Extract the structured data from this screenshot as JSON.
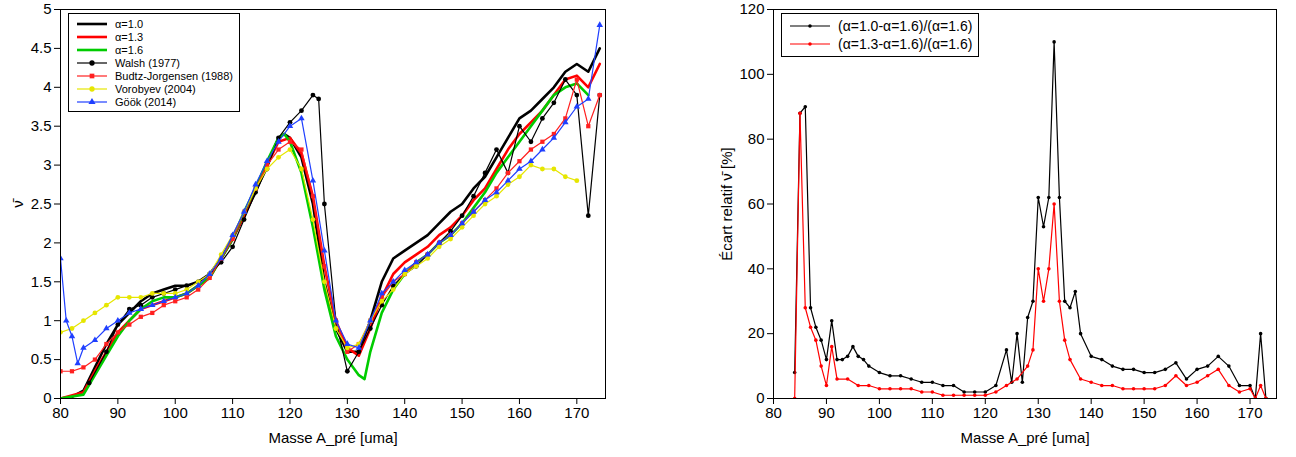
{
  "chart_data": [
    {
      "type": "line",
      "x_label": "Masse A_pré [uma]",
      "y_label": "ν̄",
      "xlim": [
        80,
        175
      ],
      "xticks": [
        80,
        90,
        100,
        110,
        120,
        130,
        140,
        150,
        160,
        170
      ],
      "ylim": [
        0,
        5
      ],
      "yticks": [
        0,
        0.5,
        1,
        1.5,
        2,
        2.5,
        3,
        3.5,
        4,
        4.5,
        5
      ],
      "grid": false,
      "legend": "upper left",
      "series": [
        {
          "name": "α=1.0",
          "color": "#000000",
          "marker": "none",
          "line_style": "solid",
          "x": [
            80,
            82,
            84,
            86,
            88,
            90,
            92,
            94,
            96,
            98,
            100,
            102,
            104,
            106,
            108,
            110,
            112,
            114,
            116,
            118,
            119,
            120,
            122,
            124,
            126,
            128,
            130,
            132,
            134,
            136,
            138,
            140,
            142,
            144,
            146,
            148,
            150,
            152,
            154,
            156,
            158,
            160,
            162,
            164,
            166,
            168,
            170,
            172,
            174
          ],
          "values": [
            0,
            0.02,
            0.1,
            0.4,
            0.7,
            0.95,
            1.1,
            1.25,
            1.35,
            1.4,
            1.45,
            1.45,
            1.5,
            1.6,
            1.8,
            2.05,
            2.35,
            2.65,
            3.0,
            3.35,
            3.4,
            3.35,
            3.1,
            2.5,
            1.5,
            0.9,
            0.6,
            0.6,
            1.0,
            1.5,
            1.8,
            1.9,
            2.0,
            2.1,
            2.25,
            2.4,
            2.5,
            2.7,
            2.85,
            3.1,
            3.35,
            3.6,
            3.7,
            3.85,
            4.0,
            4.2,
            4.3,
            4.2,
            4.5
          ]
        },
        {
          "name": "α=1.3",
          "color": "#ff0000",
          "marker": "none",
          "line_style": "solid",
          "x": [
            80,
            84,
            86,
            88,
            90,
            92,
            94,
            96,
            98,
            100,
            102,
            104,
            106,
            108,
            110,
            112,
            114,
            116,
            118,
            120,
            122,
            124,
            126,
            128,
            130,
            132,
            134,
            136,
            138,
            140,
            142,
            144,
            146,
            148,
            150,
            152,
            154,
            156,
            158,
            160,
            162,
            164,
            166,
            168,
            170,
            172,
            174
          ],
          "values": [
            0,
            0.08,
            0.35,
            0.6,
            0.85,
            1.0,
            1.15,
            1.2,
            1.25,
            1.3,
            1.35,
            1.45,
            1.55,
            1.8,
            2.05,
            2.35,
            2.7,
            3.0,
            3.3,
            3.35,
            3.15,
            2.6,
            1.7,
            1.0,
            0.65,
            0.55,
            0.9,
            1.3,
            1.6,
            1.75,
            1.85,
            1.95,
            2.1,
            2.2,
            2.35,
            2.55,
            2.7,
            2.95,
            3.2,
            3.4,
            3.55,
            3.7,
            3.9,
            4.1,
            4.15,
            4.0,
            4.3
          ]
        },
        {
          "name": "α=1.6",
          "color": "#00cc00",
          "marker": "none",
          "line_style": "solid",
          "x": [
            80,
            84,
            86,
            88,
            90,
            92,
            94,
            96,
            98,
            100,
            102,
            104,
            106,
            108,
            110,
            112,
            114,
            116,
            118,
            119,
            120,
            122,
            124,
            126,
            128,
            130,
            132,
            133,
            134,
            136,
            138,
            140,
            142,
            144,
            146,
            148,
            150,
            152,
            154,
            156,
            158,
            160,
            162,
            164,
            166,
            168,
            170,
            172
          ],
          "values": [
            0,
            0.05,
            0.3,
            0.55,
            0.8,
            1.0,
            1.15,
            1.25,
            1.3,
            1.3,
            1.35,
            1.45,
            1.55,
            1.8,
            2.05,
            2.4,
            2.7,
            3.05,
            3.35,
            3.4,
            3.3,
            2.9,
            2.2,
            1.4,
            0.8,
            0.5,
            0.3,
            0.25,
            0.6,
            1.1,
            1.4,
            1.6,
            1.75,
            1.85,
            2.0,
            2.1,
            2.25,
            2.45,
            2.65,
            2.9,
            3.1,
            3.3,
            3.5,
            3.7,
            3.9,
            4.0,
            4.05,
            3.9
          ]
        },
        {
          "name": "Walsh (1977)",
          "color": "#000000",
          "marker": "circle",
          "line_style": "solid",
          "x": [
            85,
            88,
            90,
            92,
            94,
            96,
            98,
            100,
            102,
            104,
            106,
            108,
            110,
            112,
            114,
            116,
            118,
            120,
            122,
            124,
            125,
            126,
            128,
            130,
            132,
            134,
            136,
            138,
            140,
            142,
            144,
            146,
            148,
            150,
            152,
            154,
            156,
            158,
            160,
            162,
            164,
            166,
            168,
            170,
            172,
            174
          ],
          "values": [
            0.2,
            0.6,
            0.95,
            1.15,
            1.2,
            1.3,
            1.35,
            1.4,
            1.45,
            1.5,
            1.6,
            1.75,
            1.95,
            2.3,
            2.65,
            2.95,
            3.35,
            3.55,
            3.7,
            3.9,
            3.85,
            2.5,
            1.0,
            0.35,
            0.6,
            0.9,
            1.2,
            1.45,
            1.6,
            1.7,
            1.85,
            2.0,
            2.15,
            2.35,
            2.6,
            2.9,
            3.2,
            2.9,
            3.5,
            3.3,
            3.6,
            3.8,
            4.1,
            3.9,
            2.35,
            3.9
          ]
        },
        {
          "name": "Budtz-Jorgensen (1988)",
          "color": "#ff2020",
          "marker": "square",
          "line_style": "solid",
          "x": [
            80,
            82,
            84,
            86,
            88,
            90,
            92,
            94,
            96,
            98,
            100,
            102,
            104,
            106,
            108,
            110,
            112,
            114,
            116,
            118,
            120,
            122,
            124,
            126,
            128,
            130,
            132,
            134,
            136,
            138,
            140,
            142,
            144,
            146,
            148,
            150,
            152,
            154,
            156,
            158,
            160,
            162,
            164,
            166,
            168,
            170,
            172,
            174
          ],
          "values": [
            0.35,
            0.35,
            0.4,
            0.5,
            0.7,
            0.85,
            0.95,
            1.05,
            1.1,
            1.2,
            1.25,
            1.3,
            1.4,
            1.55,
            1.8,
            2.05,
            2.4,
            2.7,
            3.0,
            3.2,
            3.3,
            3.2,
            2.6,
            1.7,
            1.0,
            0.6,
            0.7,
            1.0,
            1.3,
            1.5,
            1.6,
            1.75,
            1.85,
            2.0,
            2.1,
            2.25,
            2.4,
            2.55,
            2.7,
            2.9,
            3.05,
            3.2,
            3.3,
            3.4,
            3.6,
            4.1,
            3.5,
            3.9
          ]
        },
        {
          "name": "Vorobyev (2004)",
          "color": "#e6e600",
          "marker": "circle",
          "line_style": "solid",
          "x": [
            80,
            82,
            84,
            86,
            88,
            90,
            92,
            94,
            96,
            98,
            100,
            102,
            104,
            106,
            108,
            110,
            112,
            114,
            116,
            118,
            120,
            122,
            124,
            126,
            128,
            130,
            132,
            134,
            136,
            138,
            140,
            142,
            144,
            146,
            148,
            150,
            152,
            154,
            156,
            158,
            160,
            162,
            164,
            166,
            168,
            170
          ],
          "values": [
            0.85,
            0.9,
            1.0,
            1.1,
            1.2,
            1.3,
            1.3,
            1.3,
            1.35,
            1.35,
            1.35,
            1.4,
            1.5,
            1.6,
            1.85,
            2.1,
            2.4,
            2.7,
            2.95,
            3.1,
            3.2,
            2.95,
            2.3,
            1.5,
            0.9,
            0.65,
            0.7,
            1.0,
            1.25,
            1.4,
            1.6,
            1.7,
            1.8,
            1.95,
            2.05,
            2.2,
            2.35,
            2.5,
            2.6,
            2.75,
            2.85,
            3.0,
            2.95,
            2.95,
            2.85,
            2.8
          ]
        },
        {
          "name": "Göök (2014)",
          "color": "#1f3fff",
          "marker": "triangle",
          "line_style": "solid",
          "x": [
            80,
            81,
            82,
            83,
            84,
            86,
            88,
            90,
            92,
            94,
            96,
            98,
            100,
            102,
            104,
            106,
            108,
            110,
            112,
            114,
            116,
            118,
            120,
            122,
            124,
            126,
            128,
            130,
            132,
            134,
            136,
            138,
            140,
            142,
            144,
            146,
            148,
            150,
            152,
            154,
            156,
            158,
            160,
            162,
            164,
            166,
            168,
            170,
            172,
            174
          ],
          "values": [
            1.8,
            1.0,
            0.8,
            0.45,
            0.65,
            0.75,
            0.9,
            1.0,
            1.1,
            1.15,
            1.2,
            1.25,
            1.3,
            1.35,
            1.45,
            1.6,
            1.8,
            2.1,
            2.4,
            2.75,
            3.05,
            3.3,
            3.5,
            3.6,
            2.8,
            1.9,
            1.0,
            0.7,
            0.65,
            1.0,
            1.35,
            1.5,
            1.65,
            1.75,
            1.85,
            2.0,
            2.1,
            2.25,
            2.4,
            2.55,
            2.65,
            2.8,
            2.95,
            3.05,
            3.2,
            3.35,
            3.55,
            3.75,
            3.85,
            4.8
          ]
        }
      ]
    },
    {
      "type": "line",
      "x_label": "Masse A_pré [uma]",
      "y_label": "Écart relatif ν̄ [%]",
      "xlim": [
        80,
        175
      ],
      "xticks": [
        80,
        90,
        100,
        110,
        120,
        130,
        140,
        150,
        160,
        170
      ],
      "ylim": [
        0,
        120
      ],
      "yticks": [
        0,
        20,
        40,
        60,
        80,
        100,
        120
      ],
      "grid": false,
      "legend": "upper left",
      "series": [
        {
          "name": "(α=1.0-α=1.6)/(α=1.6)",
          "color": "#000000",
          "marker": "dot",
          "line_style": "solid",
          "x": [
            84,
            85,
            86,
            87,
            88,
            89,
            90,
            91,
            92,
            93,
            94,
            95,
            96,
            97,
            98,
            100,
            102,
            104,
            106,
            108,
            110,
            112,
            114,
            116,
            118,
            120,
            122,
            124,
            125,
            126,
            127,
            128,
            129,
            130,
            131,
            132,
            133,
            134,
            135,
            136,
            137,
            138,
            140,
            142,
            144,
            146,
            148,
            150,
            152,
            154,
            156,
            158,
            160,
            162,
            164,
            166,
            168,
            170,
            171,
            172,
            173
          ],
          "values": [
            8,
            88,
            90,
            28,
            22,
            18,
            12,
            24,
            12,
            12,
            13,
            16,
            13,
            12,
            10,
            8,
            7,
            7,
            6,
            5,
            5,
            4,
            4,
            2,
            2,
            2,
            4,
            15,
            5,
            20,
            5,
            25,
            30,
            62,
            53,
            62,
            110,
            62,
            30,
            28,
            33,
            20,
            13,
            12,
            10,
            9,
            9,
            8,
            8,
            9,
            11,
            6,
            9,
            10,
            13,
            10,
            4,
            4,
            0,
            20,
            0
          ]
        },
        {
          "name": "(α=1.3-α=1.6)/(α=1.6)",
          "color": "#ff0000",
          "marker": "dot",
          "line_style": "solid",
          "x": [
            84,
            85,
            86,
            87,
            88,
            89,
            90,
            91,
            92,
            94,
            96,
            98,
            100,
            102,
            104,
            106,
            108,
            110,
            112,
            114,
            116,
            118,
            120,
            122,
            124,
            126,
            128,
            129,
            130,
            131,
            132,
            133,
            134,
            135,
            136,
            138,
            140,
            142,
            144,
            146,
            148,
            150,
            152,
            154,
            156,
            158,
            160,
            162,
            164,
            166,
            168,
            170,
            171,
            172,
            173
          ],
          "values": [
            0,
            88,
            28,
            22,
            18,
            10,
            4,
            16,
            6,
            6,
            4,
            4,
            3,
            3,
            3,
            3,
            2,
            2,
            1,
            1,
            1,
            1,
            1,
            2,
            4,
            6,
            10,
            15,
            40,
            30,
            40,
            60,
            30,
            18,
            12,
            6,
            5,
            4,
            4,
            3,
            3,
            3,
            3,
            4,
            7,
            4,
            5,
            7,
            9,
            4,
            2,
            3,
            0,
            4,
            0
          ]
        }
      ]
    }
  ]
}
